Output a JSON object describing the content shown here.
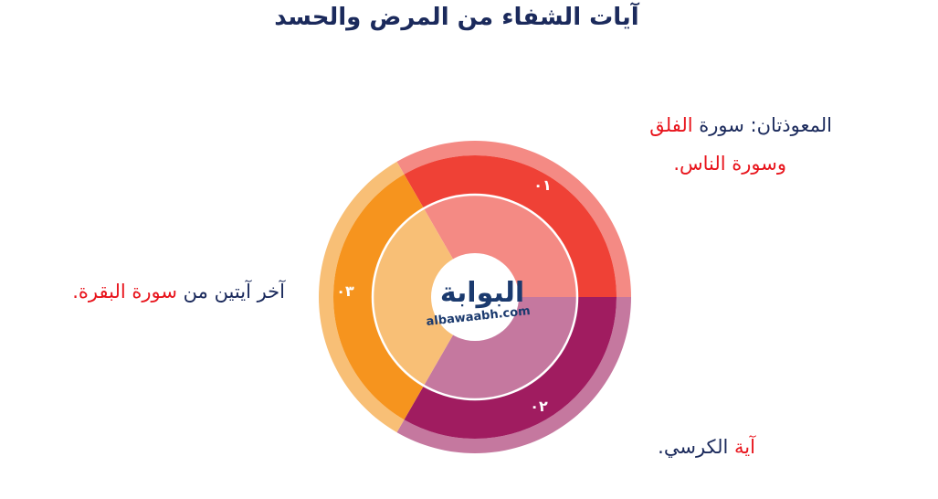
{
  "title": "آيات الشفاء من المرض والحسد",
  "segments": [
    {
      "number": "٠١",
      "color": "#ef4136",
      "inner_color": "#f48a84",
      "outer_color": "#f48a84"
    },
    {
      "number": "٠٢",
      "color": "#a01c60",
      "inner_color": "#c5789f",
      "outer_color": "#c5789f"
    },
    {
      "number": "٠٣",
      "color": "#f6941e",
      "inner_color": "#f8bf76",
      "outer_color": "#f8bf76"
    }
  ],
  "labels": {
    "one": {
      "prefix": "المعوذتان: سورة ",
      "highlight": "الفلق",
      "line2": "وسورة الناس."
    },
    "two": {
      "highlight": "آية",
      "rest": " الكرسي."
    },
    "three": {
      "prefix": "آخر آيتين من ",
      "highlight": "سورة البقرة."
    }
  },
  "logo": {
    "arabic": "البوابة",
    "latin": "albawaabh.com"
  }
}
